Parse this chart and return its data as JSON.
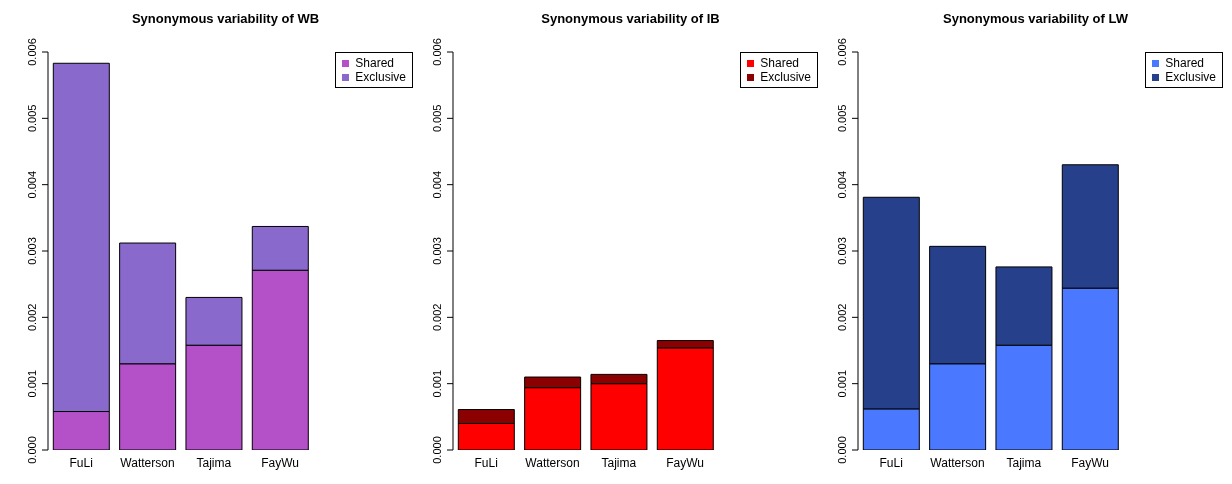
{
  "chart_data": [
    {
      "type": "bar",
      "title": "Synonymous variability of WB",
      "categories": [
        "FuLi",
        "Watterson",
        "Tajima",
        "FayWu"
      ],
      "stacked": true,
      "series": [
        {
          "name": "Shared",
          "color": "#b450c8",
          "values": [
            0.00058,
            0.0013,
            0.00158,
            0.00271
          ]
        },
        {
          "name": "Exclusive",
          "color": "#8a69cc",
          "values": [
            0.00525,
            0.00182,
            0.00072,
            0.00066
          ]
        }
      ],
      "ylim": [
        0,
        0.006
      ],
      "yticks": [
        {
          "value": 0,
          "label": "0.000"
        },
        {
          "value": 0.001,
          "label": "0.001"
        },
        {
          "value": 0.002,
          "label": "0.002"
        },
        {
          "value": 0.003,
          "label": "0.003"
        },
        {
          "value": 0.004,
          "label": "0.004"
        },
        {
          "value": 0.005,
          "label": "0.005"
        },
        {
          "value": 0.006,
          "label": "0.006"
        }
      ],
      "legend": "top right"
    },
    {
      "type": "bar",
      "title": "Synonymous variability of IB",
      "categories": [
        "FuLi",
        "Watterson",
        "Tajima",
        "FayWu"
      ],
      "stacked": true,
      "series": [
        {
          "name": "Shared",
          "color": "#ff0000",
          "values": [
            0.0004,
            0.00094,
            0.001,
            0.00154
          ]
        },
        {
          "name": "Exclusive",
          "color": "#8b0000",
          "values": [
            0.00021,
            0.00016,
            0.00014,
            0.00011
          ]
        }
      ],
      "ylim": [
        0,
        0.006
      ],
      "yticks": [
        {
          "value": 0,
          "label": "0.000"
        },
        {
          "value": 0.001,
          "label": "0.001"
        },
        {
          "value": 0.002,
          "label": "0.002"
        },
        {
          "value": 0.003,
          "label": "0.003"
        },
        {
          "value": 0.004,
          "label": "0.004"
        },
        {
          "value": 0.005,
          "label": "0.005"
        },
        {
          "value": 0.006,
          "label": "0.006"
        }
      ],
      "legend": "top right"
    },
    {
      "type": "bar",
      "title": "Synonymous variability of LW",
      "categories": [
        "FuLi",
        "Watterson",
        "Tajima",
        "FayWu"
      ],
      "stacked": true,
      "series": [
        {
          "name": "Shared",
          "color": "#4a78ff",
          "values": [
            0.00062,
            0.0013,
            0.00158,
            0.00244
          ]
        },
        {
          "name": "Exclusive",
          "color": "#26408b",
          "values": [
            0.00319,
            0.00177,
            0.00118,
            0.00186
          ]
        }
      ],
      "ylim": [
        0,
        0.006
      ],
      "yticks": [
        {
          "value": 0,
          "label": "0.000"
        },
        {
          "value": 0.001,
          "label": "0.001"
        },
        {
          "value": 0.002,
          "label": "0.002"
        },
        {
          "value": 0.003,
          "label": "0.003"
        },
        {
          "value": 0.004,
          "label": "0.004"
        },
        {
          "value": 0.005,
          "label": "0.005"
        },
        {
          "value": 0.006,
          "label": "0.006"
        }
      ],
      "legend": "top right"
    }
  ]
}
